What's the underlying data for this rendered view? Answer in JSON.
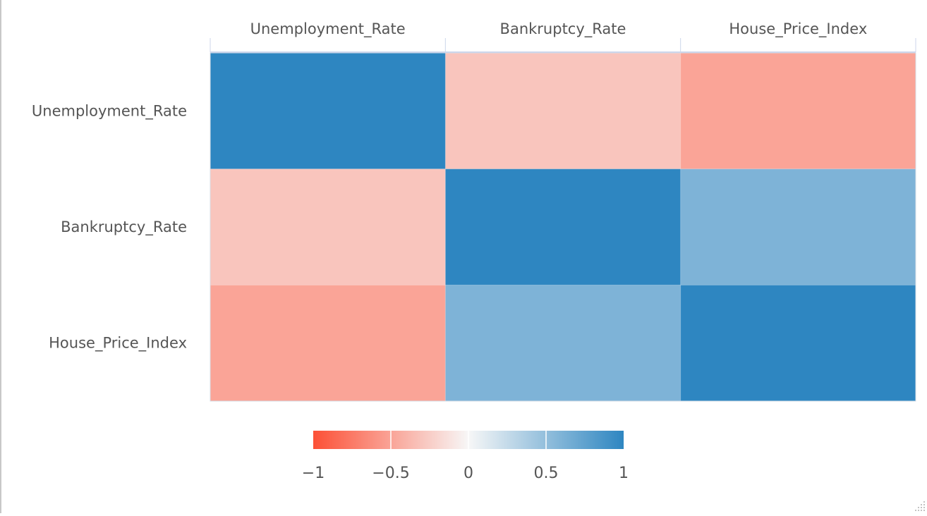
{
  "chart_data": {
    "type": "heatmap",
    "title": "",
    "x_categories": [
      "Unemployment_Rate",
      "Bankruptcy_Rate",
      "House_Price_Index"
    ],
    "y_categories": [
      "Unemployment_Rate",
      "Bankruptcy_Rate",
      "House_Price_Index"
    ],
    "x_axis_position": "top",
    "values": [
      [
        1.0,
        -0.3,
        -0.5
      ],
      [
        -0.3,
        1.0,
        0.6
      ],
      [
        -0.5,
        0.6,
        1.0
      ]
    ],
    "zlim": [
      -1,
      1
    ],
    "colorscale": {
      "low": "#fc5036",
      "mid": "#f7f7f7",
      "high": "#2e86c1"
    },
    "colorbar": {
      "ticks": [
        -1,
        -0.5,
        0,
        0.5,
        1
      ],
      "tick_labels": [
        "−1",
        "−0.5",
        "0",
        "0.5",
        "1"
      ],
      "orientation": "horizontal",
      "placement": "bottom-center"
    }
  }
}
